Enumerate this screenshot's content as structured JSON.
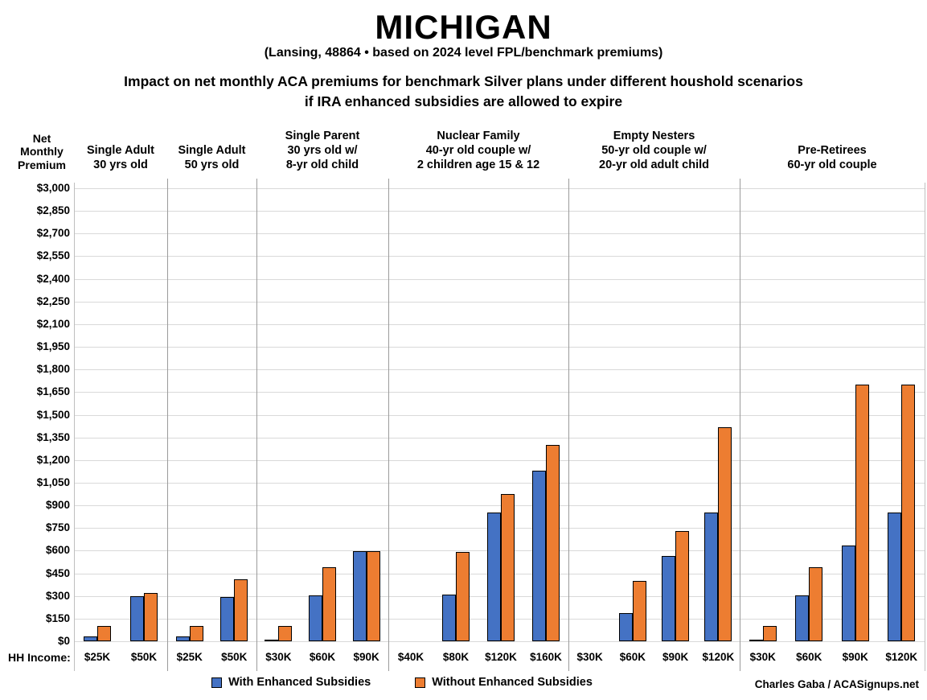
{
  "header": {
    "title": "MICHIGAN",
    "subtitle": "(Lansing, 48864 • based on 2024 level FPL/benchmark premiums)",
    "description_line1": "Impact on net monthly ACA premiums for benchmark Silver plans under different houshold scenarios",
    "description_line2": "if IRA enhanced subsidies are allowed to expire"
  },
  "y_axis_title": "Net Monthly Premium",
  "hh_income_label": "HH Income:",
  "credit": "Charles Gaba / ACASignups.net",
  "colors": {
    "with_subsidies": "#4472C4",
    "without_subsidies": "#ED7D31",
    "bar_border": "#000000",
    "gridline": "#d9d9d9",
    "divider": "#9b9b9b"
  },
  "legend": [
    {
      "label": "With Enhanced Subsidies",
      "color": "#4472C4"
    },
    {
      "label": "Without Enhanced Subsidies",
      "color": "#ED7D31"
    }
  ],
  "chart_data": {
    "type": "bar",
    "title": "Impact on net monthly ACA premiums for benchmark Silver plans under different houshold scenarios if IRA enhanced subsidies are allowed to expire",
    "ylabel": "Net Monthly Premium",
    "xlabel": "HH Income",
    "ylim": [
      0,
      3000
    ],
    "ytick_step": 150,
    "grid": true,
    "legend_position": "bottom",
    "series_names": [
      "With Enhanced Subsidies",
      "Without Enhanced Subsidies"
    ],
    "groups": [
      {
        "label_lines": [
          "Single Adult",
          "30 yrs old"
        ],
        "incomes": [
          "$25K",
          "$50K"
        ],
        "with_subsidies": [
          30,
          300
        ],
        "without_subsidies": [
          100,
          320
        ]
      },
      {
        "label_lines": [
          "Single Adult",
          "50 yrs old"
        ],
        "incomes": [
          "$25K",
          "$50K"
        ],
        "with_subsidies": [
          30,
          295
        ],
        "without_subsidies": [
          100,
          410
        ]
      },
      {
        "label_lines": [
          "Single Parent",
          "30 yrs old w/",
          "8-yr old child"
        ],
        "incomes": [
          "$30K",
          "$60K",
          "$90K"
        ],
        "with_subsidies": [
          10,
          305,
          595
        ],
        "without_subsidies": [
          100,
          490,
          595
        ]
      },
      {
        "label_lines": [
          "Nuclear Family",
          "40-yr old couple w/",
          "2 children age 15 & 12"
        ],
        "incomes": [
          "$40K",
          "$80K",
          "$120K",
          "$160K"
        ],
        "with_subsidies": [
          0,
          310,
          850,
          1130
        ],
        "without_subsidies": [
          0,
          590,
          975,
          1300
        ]
      },
      {
        "label_lines": [
          "Empty Nesters",
          "50-yr old couple w/",
          "20-yr old adult child"
        ],
        "incomes": [
          "$30K",
          "$60K",
          "$90K",
          "$120K"
        ],
        "with_subsidies": [
          0,
          185,
          565,
          850
        ],
        "without_subsidies": [
          0,
          400,
          730,
          1420
        ]
      },
      {
        "label_lines": [
          "Pre-Retirees",
          "60-yr old couple"
        ],
        "incomes": [
          "$30K",
          "$60K",
          "$90K",
          "$120K"
        ],
        "with_subsidies": [
          10,
          305,
          635,
          850
        ],
        "without_subsidies": [
          100,
          490,
          1700,
          1700
        ]
      }
    ]
  }
}
